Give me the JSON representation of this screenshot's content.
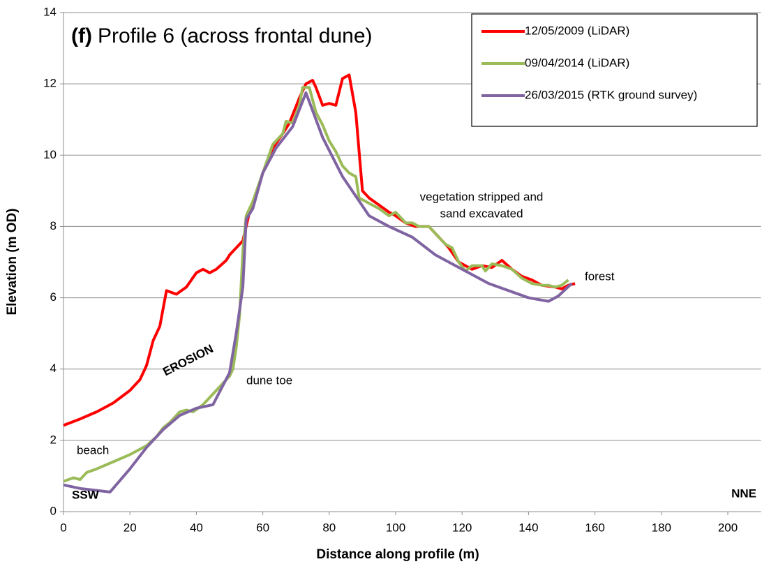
{
  "chart_data": {
    "type": "line",
    "panel_label": "(f)",
    "title": "Profile 6 (across frontal dune)",
    "x_label": "Distance along profile (m)",
    "y_label": "Elevation (m OD)",
    "xlim": [
      0,
      210
    ],
    "ylim": [
      0,
      14
    ],
    "xticks": [
      0,
      20,
      40,
      60,
      80,
      100,
      120,
      140,
      160,
      180,
      200
    ],
    "yticks": [
      0,
      2,
      4,
      6,
      8,
      10,
      12,
      14
    ],
    "grid": true,
    "legend": "upper right",
    "annotations": [
      "vegetation stripped and",
      "sand excavated",
      "forest",
      "EROSION",
      "dune toe",
      "beach",
      "SSW",
      "NNE"
    ],
    "series": [
      {
        "name": "12/05/2009 (LiDAR)",
        "color": "#ff0000",
        "x": [
          0,
          5,
          10,
          15,
          20,
          23,
          25,
          27,
          29,
          31,
          34,
          37,
          40,
          42,
          44,
          46,
          49,
          50,
          52,
          54,
          55,
          56,
          58,
          60,
          63,
          66,
          68,
          71,
          73,
          75,
          76,
          78,
          80,
          82,
          84,
          86,
          88,
          90,
          92,
          95,
          98,
          100,
          103,
          106,
          110,
          113,
          116,
          119,
          121,
          123,
          126,
          129,
          132,
          135,
          138,
          141,
          144,
          148,
          150,
          152,
          154
        ],
        "values": [
          2.42,
          2.6,
          2.8,
          3.05,
          3.4,
          3.7,
          4.1,
          4.8,
          5.2,
          6.2,
          6.1,
          6.3,
          6.7,
          6.8,
          6.7,
          6.8,
          7.05,
          7.2,
          7.4,
          7.6,
          8.0,
          8.4,
          8.9,
          9.5,
          10.2,
          10.6,
          10.9,
          11.6,
          12.0,
          12.1,
          11.9,
          11.4,
          11.45,
          11.4,
          12.15,
          12.25,
          11.2,
          9.0,
          8.8,
          8.6,
          8.4,
          8.3,
          8.1,
          8.0,
          8.0,
          7.7,
          7.4,
          7.0,
          6.9,
          6.8,
          6.9,
          6.85,
          7.05,
          6.8,
          6.6,
          6.5,
          6.35,
          6.3,
          6.25,
          6.35,
          6.4
        ]
      },
      {
        "name": "09/04/2014 (LiDAR)",
        "color": "#9bbb59",
        "x": [
          0,
          3,
          5,
          7,
          10,
          15,
          20,
          25,
          28,
          30,
          32,
          35,
          37,
          39,
          42,
          45,
          48,
          50,
          51,
          52,
          53,
          54,
          55,
          57,
          60,
          63,
          66,
          67,
          69,
          71,
          72,
          74,
          76,
          78,
          80,
          82,
          84,
          86,
          88,
          89,
          92,
          95,
          98,
          100,
          103,
          105,
          107,
          110,
          112,
          115,
          117,
          119,
          121,
          123,
          126,
          127,
          129,
          132,
          135,
          138,
          141,
          144,
          146,
          148,
          150,
          152
        ],
        "values": [
          0.85,
          0.95,
          0.9,
          1.1,
          1.2,
          1.4,
          1.6,
          1.85,
          2.1,
          2.35,
          2.5,
          2.8,
          2.85,
          2.8,
          3.0,
          3.3,
          3.6,
          3.8,
          4.0,
          4.6,
          5.5,
          7.3,
          8.3,
          8.7,
          9.5,
          10.3,
          10.6,
          10.95,
          10.9,
          11.4,
          11.9,
          11.9,
          11.2,
          10.85,
          10.4,
          10.1,
          9.7,
          9.5,
          9.4,
          8.8,
          8.65,
          8.5,
          8.3,
          8.4,
          8.1,
          8.1,
          8.0,
          8.0,
          7.8,
          7.5,
          7.4,
          7.0,
          6.75,
          6.9,
          6.9,
          6.75,
          6.95,
          6.9,
          6.8,
          6.55,
          6.4,
          6.35,
          6.35,
          6.3,
          6.35,
          6.5
        ]
      },
      {
        "name": "26/03/2015 (RTK ground survey)",
        "color": "#8064a2",
        "x": [
          0,
          5,
          14,
          20,
          25,
          30,
          35,
          40,
          45,
          50,
          52,
          54,
          55,
          57,
          60,
          64,
          69,
          73,
          76,
          78,
          84,
          92,
          98,
          105,
          112,
          118,
          128,
          140,
          146,
          149,
          153
        ],
        "values": [
          0.75,
          0.65,
          0.55,
          1.2,
          1.8,
          2.3,
          2.7,
          2.9,
          3.0,
          3.9,
          5.0,
          6.3,
          8.2,
          8.5,
          9.5,
          10.2,
          10.8,
          11.75,
          11.0,
          10.5,
          9.4,
          8.3,
          8.0,
          7.7,
          7.2,
          6.9,
          6.4,
          6.0,
          5.9,
          6.05,
          6.4
        ]
      }
    ]
  }
}
